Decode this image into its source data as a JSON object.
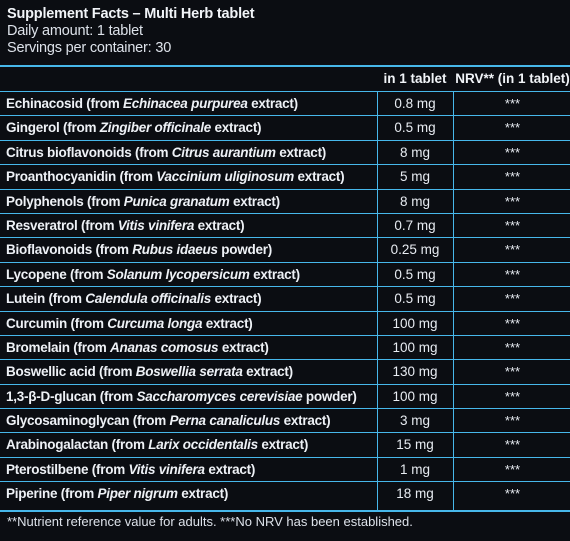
{
  "header": {
    "title": "Supplement Facts – Multi Herb tablet",
    "daily_amount": "Daily amount: 1 tablet",
    "servings": "Servings per container: 30"
  },
  "columns": {
    "amount": "in 1 tablet",
    "nrv": "NRV** (in 1 tablet)"
  },
  "rows": [
    {
      "name": "Echinacosid",
      "pre": " (from ",
      "latin": "Echinacea purpurea",
      "post": " extract)",
      "amount": "0.8 mg",
      "nrv": "***"
    },
    {
      "name": "Gingerol",
      "pre": " (from ",
      "latin": "Zingiber officinale",
      "post": " extract)",
      "amount": "0.5 mg",
      "nrv": "***"
    },
    {
      "name": "Citrus bioflavonoids",
      "pre": " (from ",
      "latin": "Citrus aurantium",
      "post": " extract)",
      "amount": "8 mg",
      "nrv": "***"
    },
    {
      "name": "Proanthocyanidin",
      "pre": " (from ",
      "latin": "Vaccinium uliginosum",
      "post": " extract)",
      "amount": "5 mg",
      "nrv": "***"
    },
    {
      "name": "Polyphenols",
      "pre": " (from ",
      "latin": "Punica granatum",
      "post": " extract)",
      "amount": "8 mg",
      "nrv": "***"
    },
    {
      "name": "Resveratrol",
      "pre": " (from ",
      "latin": "Vitis vinifera",
      "post": " extract)",
      "amount": "0.7 mg",
      "nrv": "***"
    },
    {
      "name": "Bioflavonoids",
      "pre": " (from ",
      "latin": "Rubus idaeus",
      "post": " powder)",
      "amount": "0.25 mg",
      "nrv": "***"
    },
    {
      "name": "Lycopene",
      "pre": " (from ",
      "latin": "Solanum lycopersicum",
      "post": " extract)",
      "amount": "0.5 mg",
      "nrv": "***"
    },
    {
      "name": "Lutein",
      "pre": " (from ",
      "latin": "Calendula officinalis",
      "post": " extract)",
      "amount": "0.5 mg",
      "nrv": "***"
    },
    {
      "name": "Curcumin",
      "pre": " (from ",
      "latin": "Curcuma longa",
      "post": " extract)",
      "amount": "100 mg",
      "nrv": "***"
    },
    {
      "name": "Bromelain",
      "pre": " (from ",
      "latin": "Ananas comosus",
      "post": " extract)",
      "amount": "100 mg",
      "nrv": "***"
    },
    {
      "name": "Boswellic acid",
      "pre": " (from ",
      "latin": "Boswellia serrata",
      "post": " extract)",
      "amount": "130 mg",
      "nrv": "***"
    },
    {
      "name": "1,3-β-D-glucan",
      "pre": " (from ",
      "latin": "Saccharomyces cerevisiae",
      "post": " powder)",
      "amount": "100 mg",
      "nrv": "***"
    },
    {
      "name": "Glycosaminoglycan",
      "pre": " (from ",
      "latin": "Perna canaliculus",
      "post": " extract)",
      "amount": "3 mg",
      "nrv": "***"
    },
    {
      "name": "Arabinogalactan",
      "pre": " (from ",
      "latin": "Larix occidentalis",
      "post": " extract)",
      "amount": "15 mg",
      "nrv": "***"
    },
    {
      "name": "Pterostilbene",
      "pre": " (from ",
      "latin": "Vitis vinifera",
      "post": " extract)",
      "amount": "1 mg",
      "nrv": "***"
    },
    {
      "name": "Piperine",
      "pre": " (from ",
      "latin": "Piper nigrum",
      "post": " extract)",
      "amount": "18 mg",
      "nrv": "***"
    }
  ],
  "footnote": "**Nutrient reference value for adults. ***No NRV has been established.",
  "colors": {
    "background": "#0b0d12",
    "rule": "#47b7ea",
    "text": "#e8ecf2"
  }
}
